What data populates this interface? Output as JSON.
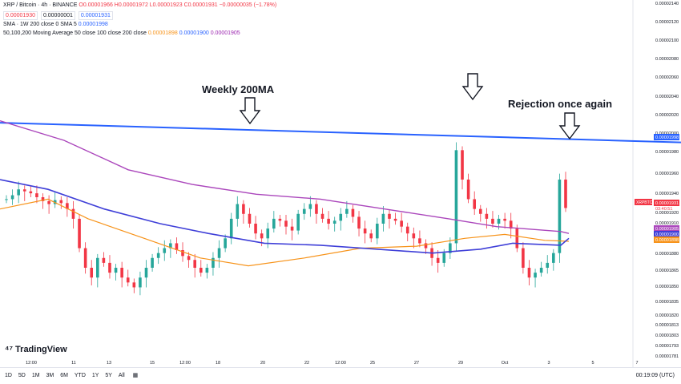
{
  "header": {
    "title": "XRP / Bitcoin · 4h · BINANCE",
    "ohlc": "O0.00001966 H0.00001972 L0.00001923 C0.00001931 −0.00000035 (−1.78%)",
    "bid": "0.00001930",
    "spread": "0.00000001",
    "ask": "0.00001931",
    "sma_label": "SMA · 1W 200 close 0 SMA 5",
    "sma_value": "0.00001998",
    "ma_label": "50,100,200 Moving Average 50 close 100 close 200 close",
    "ma_values": [
      "0.00001898",
      "0.00001900",
      "0.00001905"
    ]
  },
  "annotations": {
    "weekly": "Weekly 200MA",
    "rejection": "Rejection once again"
  },
  "logo": "TradingView",
  "bottom_bar": {
    "ranges": [
      "1D",
      "5D",
      "1M",
      "3M",
      "6M",
      "YTD",
      "1Y",
      "5Y",
      "All"
    ],
    "time": "00:19:09 (UTC)"
  },
  "colors": {
    "up": "#26a69a",
    "down": "#f23645",
    "weekly": "#2962ff",
    "ma50": "#f7931a",
    "ma100": "#3f3fd8",
    "ma200": "#ab47bc"
  },
  "chart_data": {
    "type": "candlestick",
    "symbol": "XRPBTC",
    "ylim": [
      1.78e-05,
      2.14e-05
    ],
    "y_ticks": [
      "0.00002140",
      "0.00002120",
      "0.00002100",
      "0.00002080",
      "0.00002060",
      "0.00002040",
      "0.00002020",
      "0.00002000",
      "0.00001980",
      "0.00001960",
      "0.00001940",
      "0.00001920",
      "0.00001910",
      "0.00001880",
      "0.00001865",
      "0.00001850",
      "0.00001835",
      "0.00001820",
      "0.00001813",
      "0.00001803",
      "0.00001793",
      "0.00001781"
    ],
    "x_ticks": [
      "12:00",
      "11",
      "13",
      "15",
      "12:00",
      "18",
      "20",
      "22",
      "12:00",
      "25",
      "27",
      "29",
      "Oct",
      "3",
      "5",
      "7"
    ],
    "price_labels": {
      "last": "0.00001931",
      "countdown": "03:40:51",
      "weekly_sma": "0.00001998",
      "ma200": "0.00001905",
      "ma100": "0.00001900",
      "ma50": "0.00001898"
    },
    "series": [
      {
        "name": "SMA 1W 200",
        "values": [
          [
            0,
            2.018e-05
          ],
          [
            850,
            1.998e-05
          ]
        ]
      },
      {
        "name": "MA 50",
        "values": [
          [
            0,
            1.93e-05
          ],
          [
            60,
            1.94e-05
          ],
          [
            110,
            1.92e-05
          ],
          [
            180,
            1.9e-05
          ],
          [
            250,
            1.88e-05
          ],
          [
            310,
            1.872e-05
          ],
          [
            380,
            1.88e-05
          ],
          [
            450,
            1.89e-05
          ],
          [
            520,
            1.892e-05
          ],
          [
            580,
            1.9e-05
          ],
          [
            630,
            1.904e-05
          ],
          [
            680,
            1.898e-05
          ],
          [
            710,
            1.897e-05
          ]
        ]
      },
      {
        "name": "MA 100",
        "values": [
          [
            0,
            1.96e-05
          ],
          [
            60,
            1.95e-05
          ],
          [
            130,
            1.93e-05
          ],
          [
            200,
            1.915e-05
          ],
          [
            260,
            1.905e-05
          ],
          [
            330,
            1.895e-05
          ],
          [
            400,
            1.893e-05
          ],
          [
            470,
            1.889e-05
          ],
          [
            540,
            1.885e-05
          ],
          [
            600,
            1.889e-05
          ],
          [
            640,
            1.895e-05
          ],
          [
            700,
            1.893e-05
          ],
          [
            710,
            1.9e-05
          ]
        ]
      },
      {
        "name": "MA 200",
        "values": [
          [
            0,
            2.02e-05
          ],
          [
            80,
            2e-05
          ],
          [
            160,
            1.97e-05
          ],
          [
            240,
            1.955e-05
          ],
          [
            320,
            1.945e-05
          ],
          [
            400,
            1.94e-05
          ],
          [
            480,
            1.93e-05
          ],
          [
            560,
            1.92e-05
          ],
          [
            620,
            1.912e-05
          ],
          [
            700,
            1.907e-05
          ],
          [
            710,
            1.905e-05
          ]
        ]
      }
    ]
  }
}
